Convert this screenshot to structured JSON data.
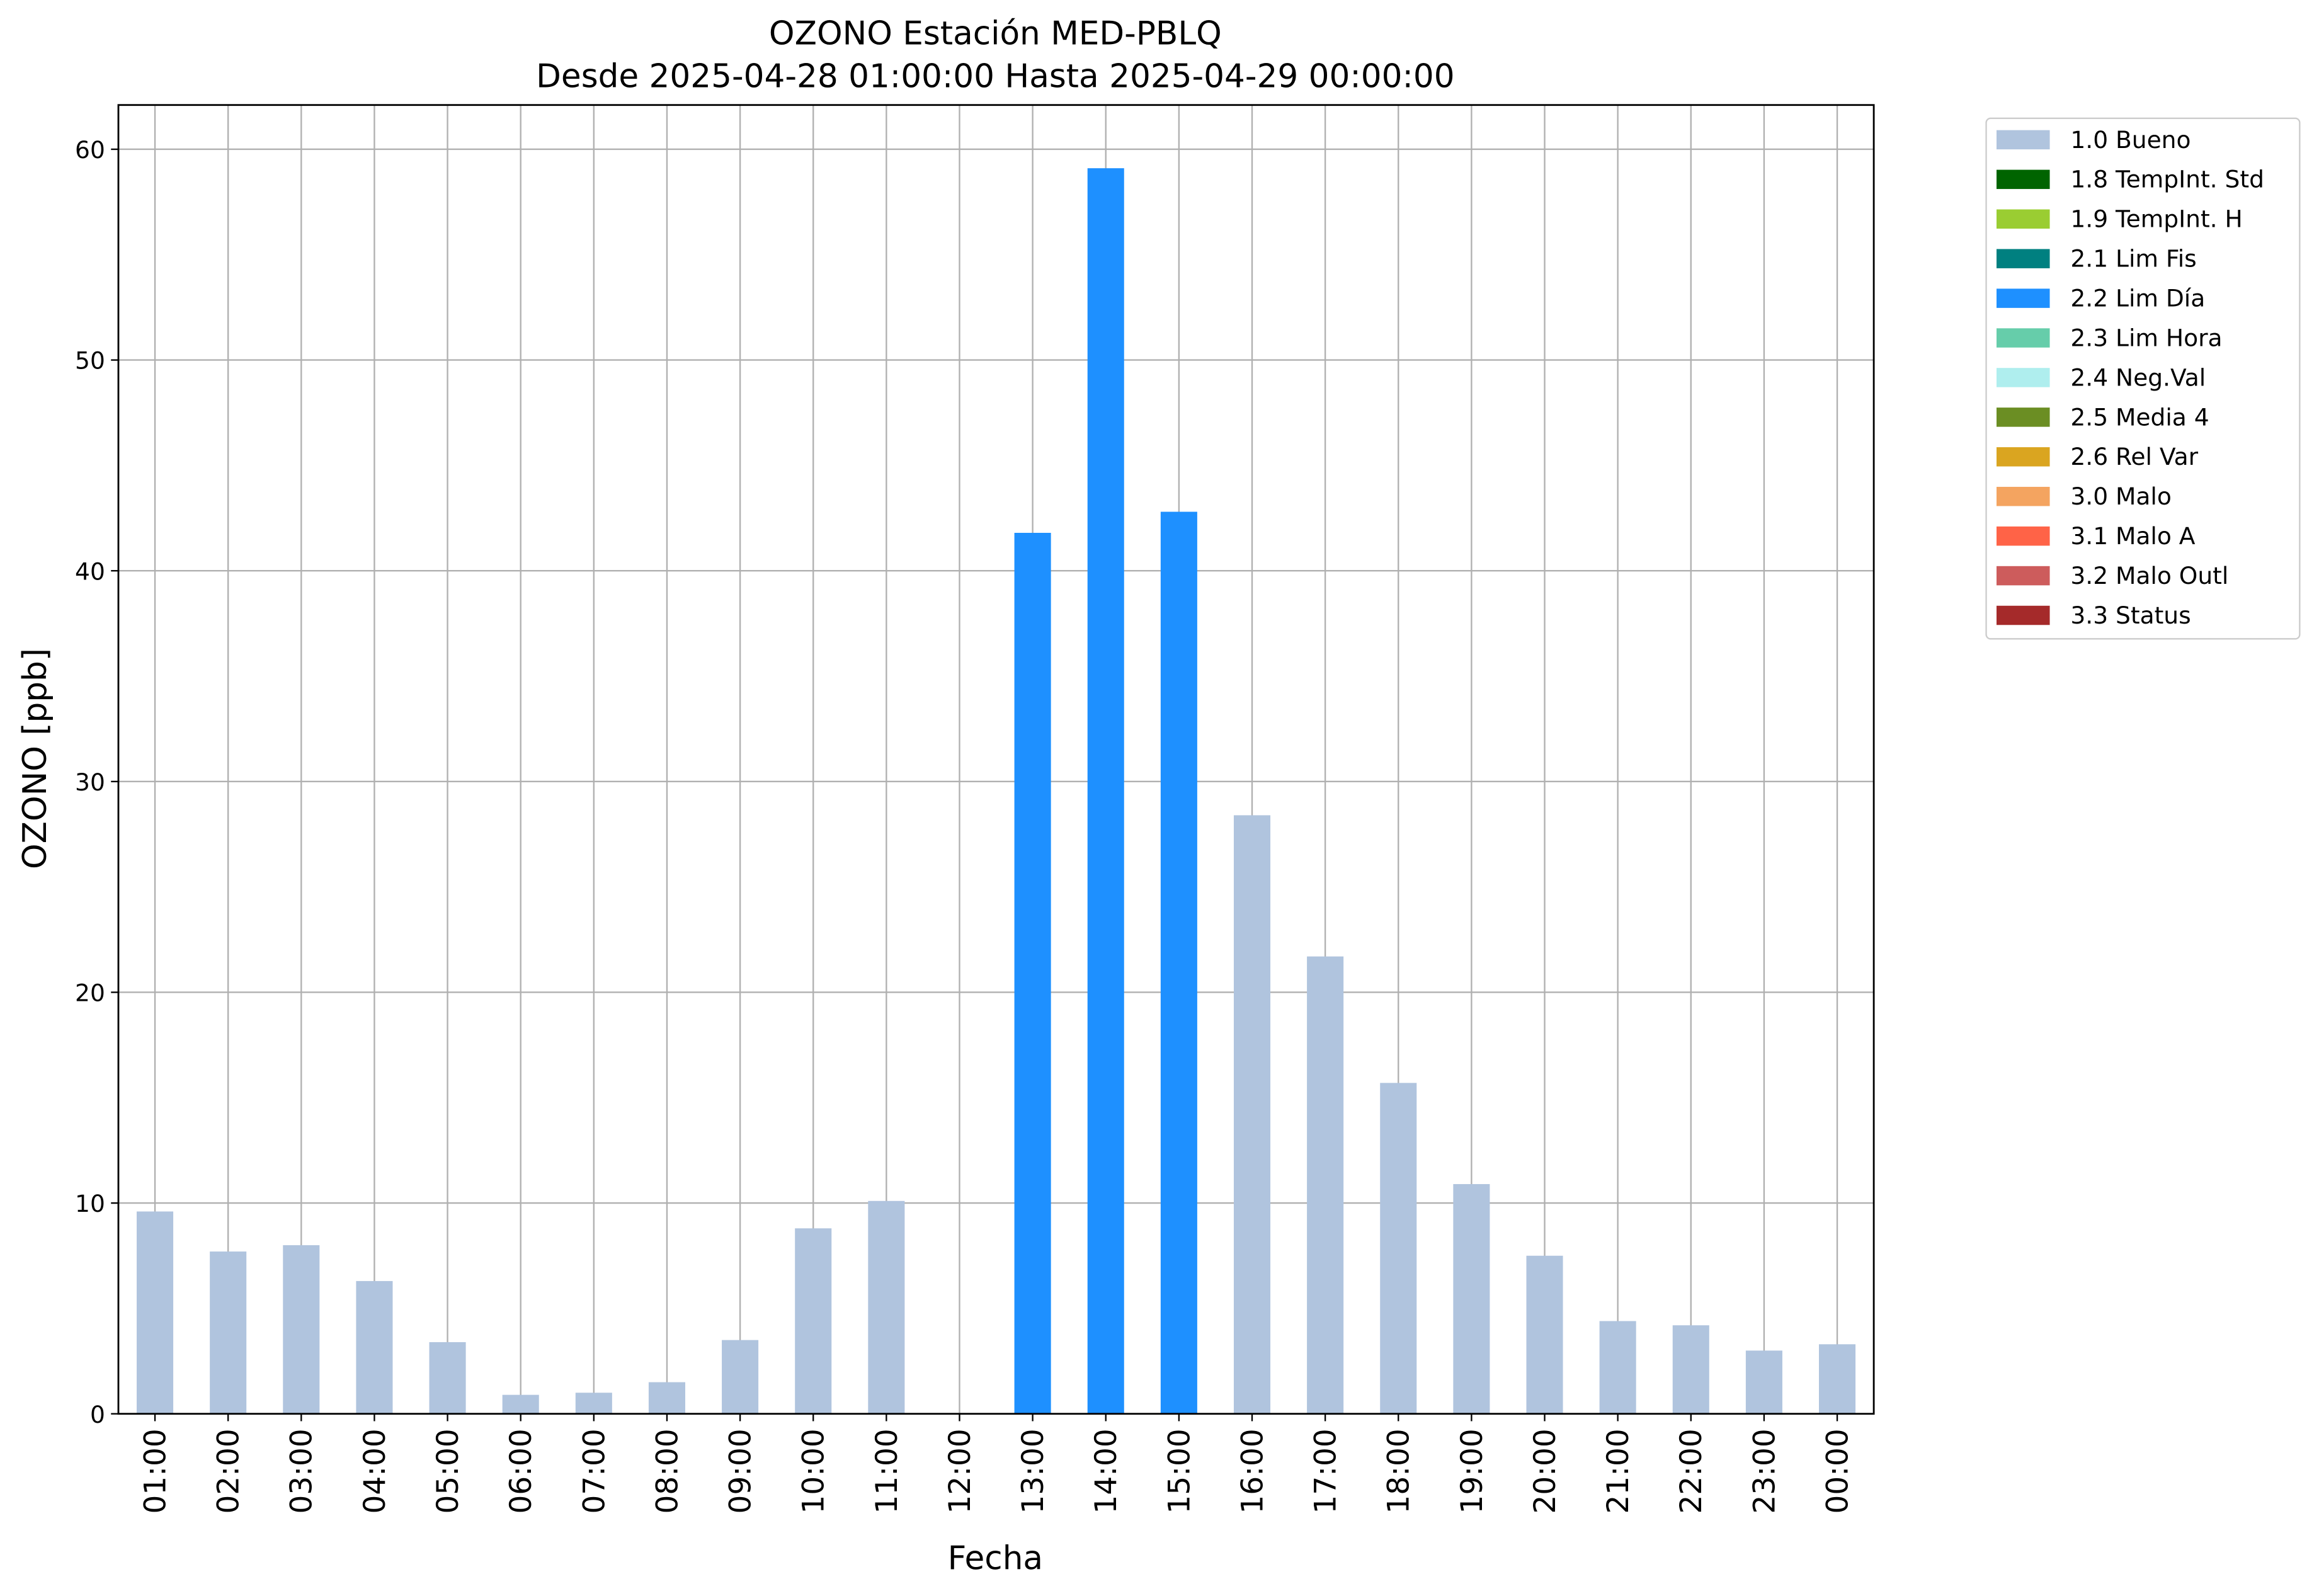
{
  "chart_data": {
    "type": "stacked_bar",
    "title": "OZONO Estación MED-PBLQ",
    "subtitle": "Desde 2025-04-28 01:00:00 Hasta 2025-04-29 00:00:00",
    "x_label": "Fecha",
    "y_label": "OZONO [ppb]",
    "categories": [
      "01:00",
      "02:00",
      "03:00",
      "04:00",
      "05:00",
      "06:00",
      "07:00",
      "08:00",
      "09:00",
      "10:00",
      "11:00",
      "12:00",
      "13:00",
      "14:00",
      "15:00",
      "16:00",
      "17:00",
      "18:00",
      "19:00",
      "20:00",
      "21:00",
      "22:00",
      "23:00",
      "00:00"
    ],
    "series": [
      {
        "name": "1.0 Bueno",
        "color": "#b0c4de",
        "values": [
          9.6,
          7.7,
          8.0,
          6.3,
          3.4,
          0.9,
          1.0,
          1.5,
          3.5,
          8.8,
          10.1,
          null,
          null,
          null,
          null,
          28.4,
          21.7,
          15.7,
          10.9,
          7.5,
          4.4,
          4.2,
          3.0,
          3.3
        ]
      },
      {
        "name": "1.8 TempInt. Std",
        "color": "#006400",
        "values": [
          null,
          null,
          null,
          null,
          null,
          null,
          null,
          null,
          null,
          null,
          null,
          null,
          null,
          null,
          null,
          null,
          null,
          null,
          null,
          null,
          null,
          null,
          null,
          null
        ]
      },
      {
        "name": "1.9 TempInt. H",
        "color": "#9acd32",
        "values": [
          null,
          null,
          null,
          null,
          null,
          null,
          null,
          null,
          null,
          null,
          null,
          null,
          null,
          null,
          null,
          null,
          null,
          null,
          null,
          null,
          null,
          null,
          null,
          null
        ]
      },
      {
        "name": "2.1 Lim Fis",
        "color": "#008080",
        "values": [
          null,
          null,
          null,
          null,
          null,
          null,
          null,
          null,
          null,
          null,
          null,
          null,
          null,
          null,
          null,
          null,
          null,
          null,
          null,
          null,
          null,
          null,
          null,
          null
        ]
      },
      {
        "name": "2.2 Lim Día",
        "color": "#1e90ff",
        "values": [
          null,
          null,
          null,
          null,
          null,
          null,
          null,
          null,
          null,
          null,
          null,
          null,
          41.8,
          59.1,
          42.8,
          null,
          null,
          null,
          null,
          null,
          null,
          null,
          null,
          null
        ]
      },
      {
        "name": "2.3 Lim Hora",
        "color": "#66cdaa",
        "values": [
          null,
          null,
          null,
          null,
          null,
          null,
          null,
          null,
          null,
          null,
          null,
          null,
          null,
          null,
          null,
          null,
          null,
          null,
          null,
          null,
          null,
          null,
          null,
          null
        ]
      },
      {
        "name": "2.4 Neg.Val",
        "color": "#afeeee",
        "values": [
          null,
          null,
          null,
          null,
          null,
          null,
          null,
          null,
          null,
          null,
          null,
          null,
          null,
          null,
          null,
          null,
          null,
          null,
          null,
          null,
          null,
          null,
          null,
          null
        ]
      },
      {
        "name": "2.5 Media 4",
        "color": "#6b8e23",
        "values": [
          null,
          null,
          null,
          null,
          null,
          null,
          null,
          null,
          null,
          null,
          null,
          null,
          null,
          null,
          null,
          null,
          null,
          null,
          null,
          null,
          null,
          null,
          null,
          null
        ]
      },
      {
        "name": "2.6 Rel Var",
        "color": "#daa520",
        "values": [
          null,
          null,
          null,
          null,
          null,
          null,
          null,
          null,
          null,
          null,
          null,
          null,
          null,
          null,
          null,
          null,
          null,
          null,
          null,
          null,
          null,
          null,
          null,
          null
        ]
      },
      {
        "name": "3.0 Malo",
        "color": "#f4a460",
        "values": [
          null,
          null,
          null,
          null,
          null,
          null,
          null,
          null,
          null,
          null,
          null,
          null,
          null,
          null,
          null,
          null,
          null,
          null,
          null,
          null,
          null,
          null,
          null,
          null
        ]
      },
      {
        "name": "3.1 Malo A",
        "color": "#ff6347",
        "values": [
          null,
          null,
          null,
          null,
          null,
          null,
          null,
          null,
          null,
          null,
          null,
          null,
          null,
          null,
          null,
          null,
          null,
          null,
          null,
          null,
          null,
          null,
          null,
          null
        ]
      },
      {
        "name": "3.2 Malo Outl",
        "color": "#cd5c5c",
        "values": [
          null,
          null,
          null,
          null,
          null,
          null,
          null,
          null,
          null,
          null,
          null,
          null,
          null,
          null,
          null,
          null,
          null,
          null,
          null,
          null,
          null,
          null,
          null,
          null
        ]
      },
      {
        "name": "3.3 Status",
        "color": "#a52a2a",
        "values": [
          null,
          null,
          null,
          null,
          null,
          null,
          null,
          null,
          null,
          null,
          null,
          null,
          null,
          null,
          null,
          null,
          null,
          null,
          null,
          null,
          null,
          null,
          null,
          null
        ]
      }
    ],
    "ylim": [
      0,
      62.1
    ],
    "yticks": [
      0,
      10,
      20,
      30,
      40,
      50,
      60
    ],
    "grid": true,
    "legend": "outside-upper-right"
  }
}
